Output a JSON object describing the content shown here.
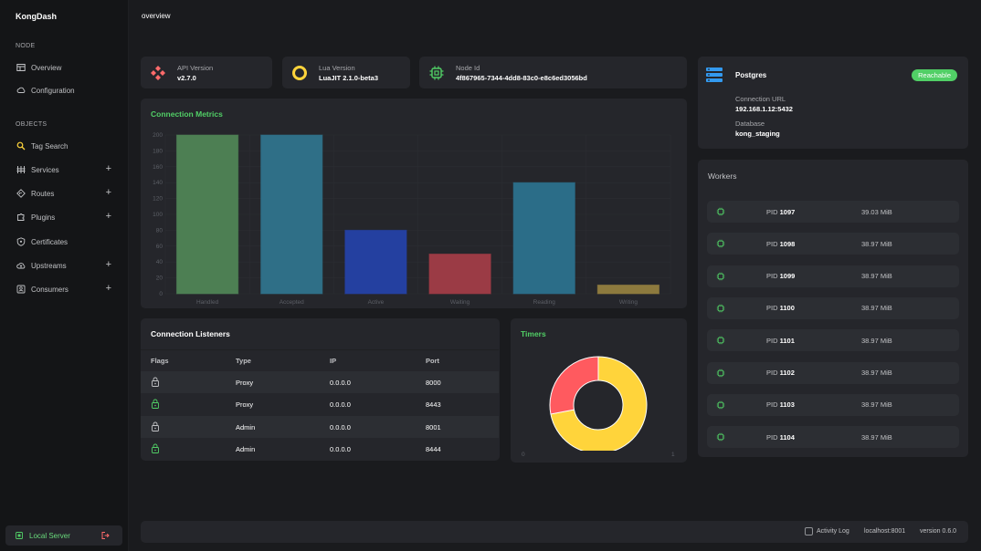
{
  "app": {
    "brand": "KongDash",
    "page_title": "overview"
  },
  "sidebar": {
    "node_label": "NODE",
    "objects_label": "OBJECTS",
    "node_items": [
      {
        "label": "Overview",
        "icon": "table-icon"
      },
      {
        "label": "Configuration",
        "icon": "cloud-gear-icon"
      }
    ],
    "object_items": [
      {
        "label": "Tag Search",
        "icon": "search-icon"
      },
      {
        "label": "Services",
        "icon": "services-icon",
        "plus": "+"
      },
      {
        "label": "Routes",
        "icon": "route-icon",
        "plus": "+"
      },
      {
        "label": "Plugins",
        "icon": "puzzle-icon",
        "plus": "+"
      },
      {
        "label": "Certificates",
        "icon": "shield-icon"
      },
      {
        "label": "Upstreams",
        "icon": "cloud-upload-icon",
        "plus": "+"
      },
      {
        "label": "Consumers",
        "icon": "user-card-icon",
        "plus": "+"
      }
    ],
    "footer": {
      "label": "Local Server"
    }
  },
  "info_cards": [
    {
      "label": "API Version",
      "value": "v2.7.0",
      "icon": "kong-logo-icon",
      "color": "#ff6b6b"
    },
    {
      "label": "Lua Version",
      "value": "LuaJIT 2.1.0-beta3",
      "icon": "lua-ring-icon",
      "color": "#ffd43b"
    },
    {
      "label": "Node Id",
      "value": "4f867965-7344-4dd8-83c0-e8c6ed3056bd",
      "icon": "cpu-icon",
      "color": "#51cf66"
    }
  ],
  "database": {
    "name": "Postgres",
    "status": "Reachable",
    "url_label": "Connection URL",
    "url": "192.168.1.12:5432",
    "db_label": "Database",
    "db": "kong_staging"
  },
  "metrics_title": "Connection Metrics",
  "chart_data": {
    "type": "bar",
    "categories": [
      "Handled",
      "Accepted",
      "Active",
      "Waiting",
      "Reading",
      "Writing"
    ],
    "values": [
      200,
      200,
      80,
      50,
      140,
      11
    ],
    "colors": [
      "#4d7f53",
      "#2f6f87",
      "#2440a0",
      "#9b3b45",
      "#2b6d88",
      "#8d7a3e"
    ],
    "ylim": [
      0,
      200
    ],
    "yticks": [
      0,
      20,
      40,
      60,
      80,
      100,
      120,
      140,
      160,
      180,
      200
    ],
    "grid": true
  },
  "listeners": {
    "title": "Connection Listeners",
    "headers": {
      "flags": "Flags",
      "type": "Type",
      "ip": "IP",
      "port": "Port"
    },
    "rows": [
      {
        "type": "Proxy",
        "ip": "0.0.0.0",
        "port": "8000",
        "ssl": false
      },
      {
        "type": "Proxy",
        "ip": "0.0.0.0",
        "port": "8443",
        "ssl": true
      },
      {
        "type": "Admin",
        "ip": "0.0.0.0",
        "port": "8001",
        "ssl": false
      },
      {
        "type": "Admin",
        "ip": "0.0.0.0",
        "port": "8444",
        "ssl": true
      }
    ]
  },
  "timers": {
    "title": "Timers",
    "left_label": "0",
    "right_label": "1",
    "segments": [
      {
        "value": 0.72,
        "color": "#ffd43b"
      },
      {
        "value": 0.28,
        "color": "#ff5a5f"
      }
    ]
  },
  "workers": {
    "title": "Workers",
    "pid_label": "PID",
    "items": [
      {
        "pid": "1097",
        "mem": "39.03 MiB"
      },
      {
        "pid": "1098",
        "mem": "38.97 MiB"
      },
      {
        "pid": "1099",
        "mem": "38.97 MiB"
      },
      {
        "pid": "1100",
        "mem": "38.97 MiB"
      },
      {
        "pid": "1101",
        "mem": "38.97 MiB"
      },
      {
        "pid": "1102",
        "mem": "38.97 MiB"
      },
      {
        "pid": "1103",
        "mem": "38.97 MiB"
      },
      {
        "pid": "1104",
        "mem": "38.97 MiB"
      }
    ]
  },
  "footer": {
    "activity_log": "Activity Log",
    "host": "localhost:8001",
    "version": "version 0.6.0"
  }
}
